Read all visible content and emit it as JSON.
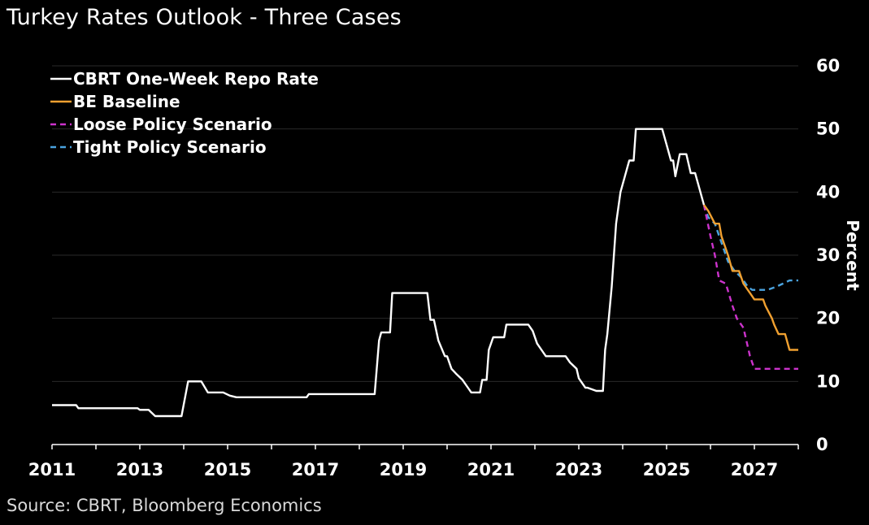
{
  "chart_data": {
    "type": "line",
    "title": "Turkey Rates Outlook - Three Cases",
    "source": "Source: CBRT, Bloomberg Economics",
    "xlabel": "",
    "ylabel": "Percent",
    "xlim": [
      2011,
      2028
    ],
    "ylim": [
      0,
      60
    ],
    "x_ticks": [
      "2011",
      "2013",
      "2015",
      "2017",
      "2019",
      "2021",
      "2023",
      "2025",
      "2027"
    ],
    "y_ticks": [
      "0",
      "10",
      "20",
      "30",
      "40",
      "50",
      "60"
    ],
    "y_axis_side": "right",
    "grid": "horizontal",
    "legend_position": "top-left",
    "series": [
      {
        "name": "CBRT One-Week Repo Rate",
        "color": "#ffffff",
        "style": "solid",
        "x": [
          2011.0,
          2011.55,
          2011.6,
          2012.95,
          2013.0,
          2013.2,
          2013.35,
          2013.95,
          2014.1,
          2014.4,
          2014.55,
          2014.9,
          2015.05,
          2015.2,
          2016.8,
          2016.85,
          2018.35,
          2018.45,
          2018.5,
          2018.55,
          2018.7,
          2018.75,
          2018.82,
          2019.55,
          2019.62,
          2019.7,
          2019.8,
          2019.95,
          2020.0,
          2020.1,
          2020.2,
          2020.35,
          2020.5,
          2020.55,
          2020.75,
          2020.8,
          2020.9,
          2020.95,
          2021.05,
          2021.15,
          2021.3,
          2021.35,
          2021.85,
          2021.95,
          2022.05,
          2022.15,
          2022.25,
          2022.7,
          2022.8,
          2022.95,
          2023.0,
          2023.15,
          2023.2,
          2023.4,
          2023.45,
          2023.55,
          2023.6,
          2023.65,
          2023.75,
          2023.85,
          2023.95,
          2024.05,
          2024.15,
          2024.25,
          2024.3,
          2024.9,
          2025.0,
          2025.1,
          2025.15,
          2025.2,
          2025.3,
          2025.45,
          2025.55,
          2025.65,
          2025.75,
          2025.85
        ],
        "y": [
          6.25,
          6.25,
          5.75,
          5.75,
          5.5,
          5.5,
          4.5,
          4.5,
          10.0,
          10.0,
          8.25,
          8.25,
          7.75,
          7.5,
          7.5,
          8.0,
          8.0,
          16.5,
          17.75,
          17.75,
          17.75,
          24.0,
          24.0,
          24.0,
          19.75,
          19.75,
          16.5,
          14.0,
          14.0,
          12.0,
          11.25,
          10.25,
          8.75,
          8.25,
          8.25,
          10.25,
          10.25,
          15.0,
          17.0,
          17.0,
          17.0,
          19.0,
          19.0,
          18.0,
          16.0,
          15.0,
          14.0,
          14.0,
          13.0,
          12.0,
          10.5,
          9.0,
          9.0,
          8.5,
          8.5,
          8.5,
          15.0,
          17.5,
          25.0,
          35.0,
          40.0,
          42.5,
          45.0,
          45.0,
          50.0,
          50.0,
          47.5,
          45.0,
          45.0,
          42.5,
          46.0,
          46.0,
          43.0,
          43.0,
          40.5,
          38.0
        ]
      },
      {
        "name": "BE Baseline",
        "color": "#f0a030",
        "style": "solid",
        "x": [
          2025.85,
          2025.95,
          2026.1,
          2026.2,
          2026.25,
          2026.4,
          2026.5,
          2026.65,
          2026.75,
          2026.9,
          2027.0,
          2027.2,
          2027.25,
          2027.4,
          2027.45,
          2027.55,
          2027.7,
          2027.8,
          2028.0
        ],
        "y": [
          38.0,
          37.0,
          35.0,
          35.0,
          33.0,
          30.0,
          27.5,
          27.5,
          25.5,
          24.0,
          23.0,
          23.0,
          22.0,
          20.0,
          19.0,
          17.5,
          17.5,
          15.0,
          15.0
        ]
      },
      {
        "name": "Loose Policy Scenario",
        "color": "#cc33cc",
        "style": "dashed",
        "x": [
          2025.85,
          2026.0,
          2026.1,
          2026.2,
          2026.35,
          2026.5,
          2026.6,
          2026.75,
          2026.9,
          2027.0,
          2028.0
        ],
        "y": [
          38.0,
          33.0,
          30.0,
          26.0,
          25.5,
          22.0,
          20.0,
          18.5,
          14.0,
          12.0,
          12.0
        ]
      },
      {
        "name": "Tight Policy Scenario",
        "color": "#4aa3df",
        "style": "dashed",
        "x": [
          2025.85,
          2025.95,
          2026.1,
          2026.2,
          2026.3,
          2026.4,
          2026.55,
          2026.7,
          2026.85,
          2026.95,
          2027.1,
          2027.3,
          2027.5,
          2027.65,
          2027.8,
          2027.9,
          2028.0
        ],
        "y": [
          38.0,
          36.0,
          35.0,
          33.0,
          31.0,
          29.0,
          27.5,
          26.5,
          25.0,
          24.5,
          24.5,
          24.5,
          25.0,
          25.5,
          26.0,
          26.0,
          26.0
        ]
      }
    ]
  }
}
